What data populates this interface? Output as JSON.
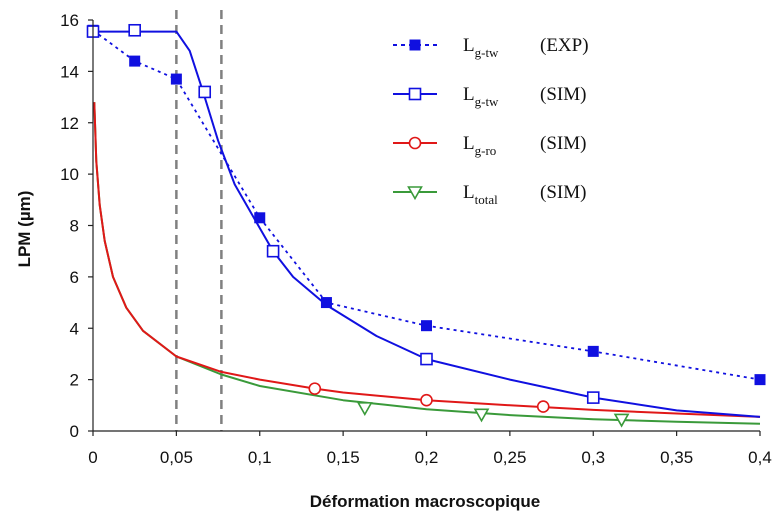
{
  "chart_data": {
    "type": "line",
    "xlabel": "Déformation macroscopique",
    "ylabel": "LPM (µm)",
    "xlim": [
      0,
      0.4
    ],
    "ylim": [
      0,
      16
    ],
    "x_ticks": [
      "0",
      "0,05",
      "0,1",
      "0,15",
      "0,2",
      "0,25",
      "0,3",
      "0,35",
      "0,4"
    ],
    "y_ticks": [
      "0",
      "2",
      "4",
      "6",
      "8",
      "10",
      "12",
      "14",
      "16"
    ],
    "grid": false,
    "legend_position": "top-right",
    "vertical_dashed_lines": [
      0.05,
      0.077
    ],
    "series": [
      {
        "name": "L",
        "name_sub": "g-tw",
        "name_suffix": "(EXP)",
        "color": "#1010e0",
        "line": "dotted",
        "marker": "square-filled",
        "points": [
          [
            0,
            15.6
          ],
          [
            0.025,
            14.4
          ],
          [
            0.05,
            13.7
          ],
          [
            0.1,
            8.3
          ],
          [
            0.14,
            5.0
          ],
          [
            0.2,
            4.1
          ],
          [
            0.3,
            3.1
          ],
          [
            0.4,
            2.0
          ]
        ],
        "markers": [
          [
            0,
            15.6
          ],
          [
            0.025,
            14.4
          ],
          [
            0.05,
            13.7
          ],
          [
            0.1,
            8.3
          ],
          [
            0.14,
            5.0
          ],
          [
            0.2,
            4.1
          ],
          [
            0.3,
            3.1
          ],
          [
            0.4,
            2.0
          ]
        ]
      },
      {
        "name": "L",
        "name_sub": "g-tw",
        "name_suffix": "(SIM)",
        "color": "#1010e0",
        "line": "solid",
        "marker": "square-open",
        "points": [
          [
            0,
            15.55
          ],
          [
            0.05,
            15.55
          ],
          [
            0.058,
            14.8
          ],
          [
            0.066,
            13.2
          ],
          [
            0.075,
            11.3
          ],
          [
            0.085,
            9.6
          ],
          [
            0.1,
            7.9
          ],
          [
            0.108,
            7.0
          ],
          [
            0.12,
            6.0
          ],
          [
            0.14,
            4.9
          ],
          [
            0.17,
            3.7
          ],
          [
            0.2,
            2.8
          ],
          [
            0.25,
            2.0
          ],
          [
            0.3,
            1.3
          ],
          [
            0.35,
            0.8
          ],
          [
            0.4,
            0.55
          ]
        ],
        "markers": [
          [
            0,
            15.55
          ],
          [
            0.025,
            15.6
          ],
          [
            0.067,
            13.2
          ],
          [
            0.108,
            7.0
          ],
          [
            0.2,
            2.8
          ],
          [
            0.3,
            1.3
          ]
        ]
      },
      {
        "name": "L",
        "name_sub": "g-ro",
        "name_suffix": "(SIM)",
        "color": "#e01818",
        "line": "solid",
        "marker": "circle-open",
        "points": [
          [
            0.0008,
            12.8
          ],
          [
            0.002,
            10.5
          ],
          [
            0.004,
            8.8
          ],
          [
            0.007,
            7.4
          ],
          [
            0.012,
            6.0
          ],
          [
            0.02,
            4.8
          ],
          [
            0.03,
            3.9
          ],
          [
            0.05,
            2.9
          ],
          [
            0.077,
            2.3
          ],
          [
            0.1,
            2.0
          ],
          [
            0.133,
            1.65
          ],
          [
            0.15,
            1.5
          ],
          [
            0.2,
            1.2
          ],
          [
            0.25,
            1.0
          ],
          [
            0.3,
            0.82
          ],
          [
            0.35,
            0.68
          ],
          [
            0.4,
            0.55
          ]
        ],
        "markers": [
          [
            0.133,
            1.65
          ],
          [
            0.2,
            1.2
          ],
          [
            0.27,
            0.95
          ]
        ]
      },
      {
        "name": "L",
        "name_sub": "total",
        "name_suffix": "(SIM)",
        "color": "#3a9a3a",
        "line": "solid",
        "marker": "triangle-down-open",
        "points": [
          [
            0.0008,
            12.8
          ],
          [
            0.002,
            10.5
          ],
          [
            0.004,
            8.8
          ],
          [
            0.007,
            7.4
          ],
          [
            0.012,
            6.0
          ],
          [
            0.02,
            4.8
          ],
          [
            0.03,
            3.9
          ],
          [
            0.05,
            2.9
          ],
          [
            0.077,
            2.2
          ],
          [
            0.1,
            1.75
          ],
          [
            0.15,
            1.2
          ],
          [
            0.2,
            0.85
          ],
          [
            0.25,
            0.62
          ],
          [
            0.3,
            0.46
          ],
          [
            0.35,
            0.36
          ],
          [
            0.4,
            0.28
          ]
        ],
        "markers": [
          [
            0.163,
            0.9
          ],
          [
            0.233,
            0.65
          ],
          [
            0.317,
            0.45
          ]
        ]
      }
    ]
  }
}
